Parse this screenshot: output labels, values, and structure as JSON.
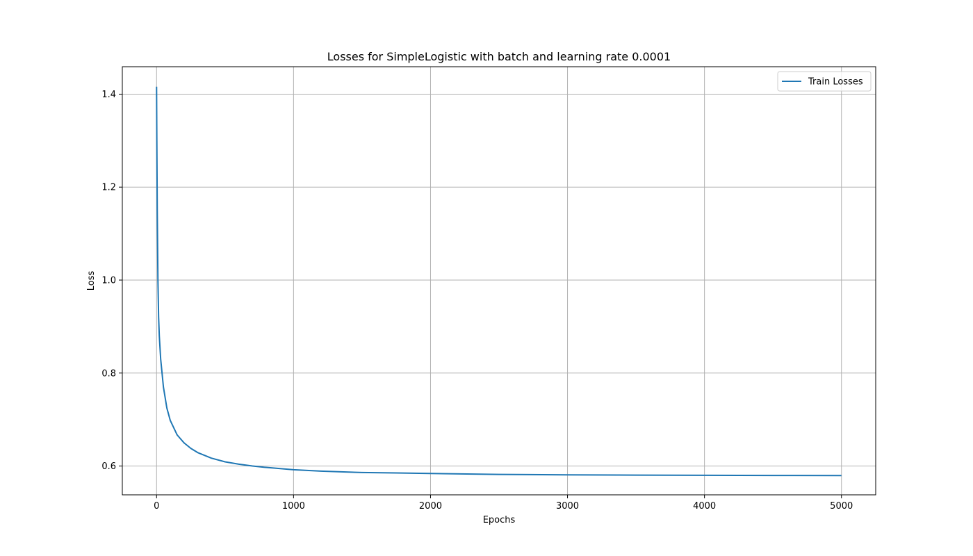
{
  "chart_data": {
    "type": "line",
    "title": "Losses for SimpleLogistic with batch and learning rate 0.0001",
    "xlabel": "Epochs",
    "ylabel": "Loss",
    "xlim": [
      -250,
      5250
    ],
    "ylim": [
      0.538,
      1.459
    ],
    "xticks": [
      0,
      1000,
      2000,
      3000,
      4000,
      5000
    ],
    "xtick_labels": [
      "0",
      "1000",
      "2000",
      "3000",
      "4000",
      "5000"
    ],
    "yticks": [
      0.6,
      0.8,
      1.0,
      1.2,
      1.4
    ],
    "ytick_labels": [
      "0.6",
      "0.8",
      "1.0",
      "1.2",
      "1.4"
    ],
    "grid": true,
    "legend_position": "top-right",
    "series": [
      {
        "name": "Train Losses",
        "color": "#1f77b4",
        "x": [
          0,
          2,
          5,
          10,
          15,
          20,
          30,
          40,
          50,
          75,
          100,
          150,
          200,
          250,
          300,
          400,
          500,
          600,
          700,
          800,
          1000,
          1200,
          1500,
          1750,
          2000,
          2500,
          3000,
          3500,
          4000,
          4500,
          5000
        ],
        "y": [
          1.416,
          1.3,
          1.15,
          1.0,
          0.92,
          0.88,
          0.83,
          0.8,
          0.77,
          0.725,
          0.698,
          0.667,
          0.65,
          0.638,
          0.629,
          0.617,
          0.609,
          0.604,
          0.6,
          0.597,
          0.592,
          0.589,
          0.586,
          0.585,
          0.584,
          0.582,
          0.581,
          0.5805,
          0.58,
          0.5797,
          0.5795
        ]
      }
    ]
  }
}
